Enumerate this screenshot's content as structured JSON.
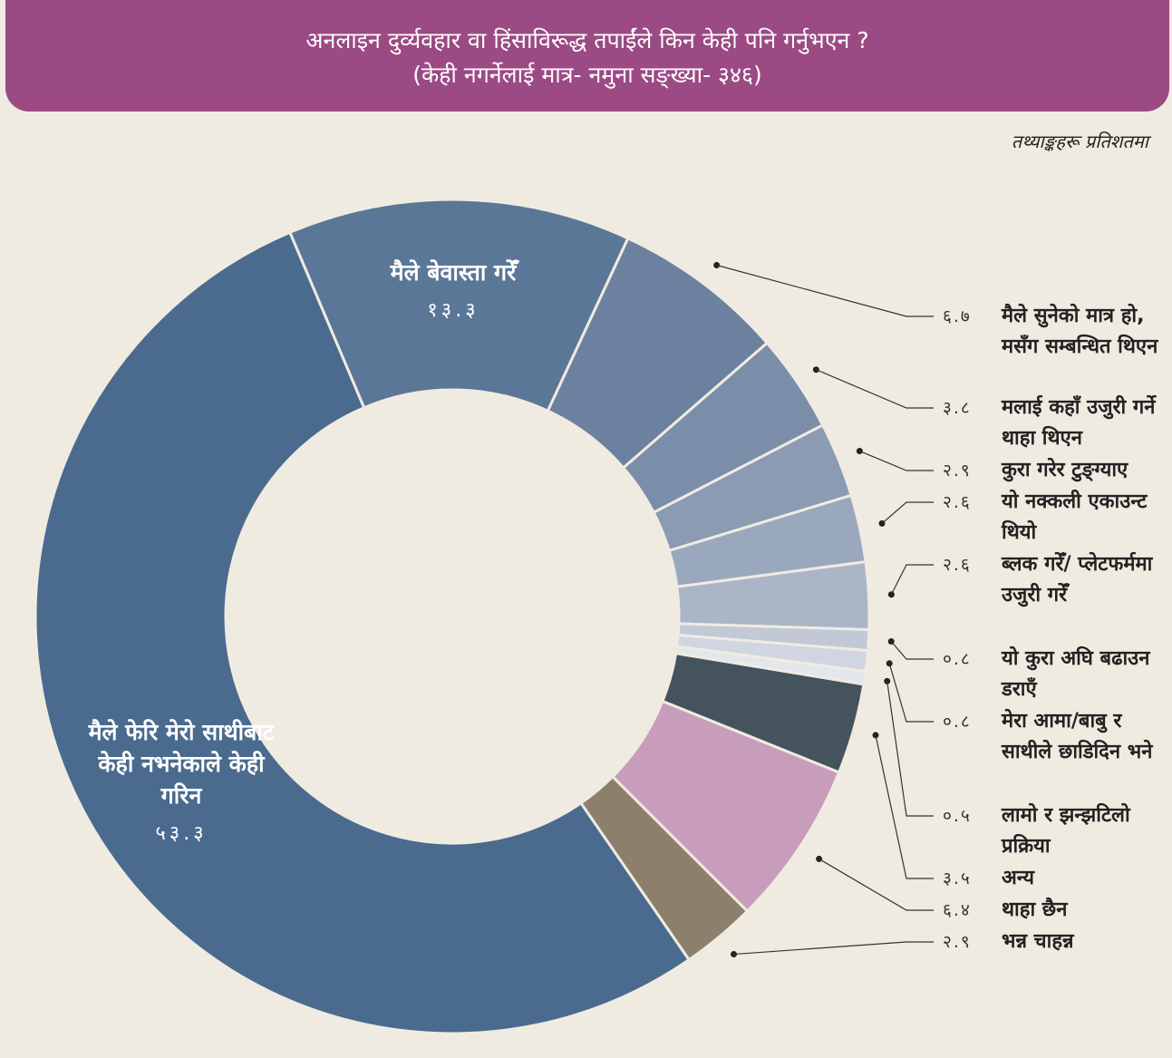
{
  "chart_data": {
    "type": "donut",
    "title": "अनलाइन दुर्व्यवहार वा हिंसाविरूद्ध तपाईंले किन केही पनि गर्नुभएन ?",
    "subtitle": "(केही नगर्नेलाई मात्र- नमुना सङ्ख्या- ३४६)",
    "note": "तथ्याङ्कहरू प्रतिशतमा",
    "categories": [
      "मैले फेरि मेरो साथीबाट केही नभनेकाले केही गरिन",
      "मैले बेवास्ता गरेँ",
      "मैले सुनेको मात्र हो, मसँग सम्बन्धित थिएन",
      "मलाई कहाँ उजुरी गर्ने थाहा थिएन",
      "कुरा गरेर टुङ्ग्याए",
      "यो नक्कली एकाउन्ट थियो",
      "ब्लक गरेँ/ प्लेटफर्ममा उजुरी गरेँ",
      "यो कुरा अघि बढाउन डराएँ",
      "मेरा आमा/बाबु र साथीले छाडिदिन भने",
      "लामो र झन्झटिलो प्रक्रिया",
      "अन्य",
      "थाहा छैन",
      "भन्न चाहन्न"
    ],
    "values": [
      53.3,
      13.3,
      6.7,
      3.8,
      2.9,
      2.6,
      2.6,
      0.8,
      0.8,
      0.5,
      3.5,
      6.4,
      2.9
    ],
    "value_labels": [
      "५३.३",
      "१३.३",
      "६.७",
      "३.८",
      "२.९",
      "२.६",
      "२.६",
      "०.८",
      "०.८",
      "०.५",
      "३.५",
      "६.४",
      "२.९"
    ],
    "colors": [
      "#4a6b8e",
      "#5b7797",
      "#6c819f",
      "#7b8ea9",
      "#8a9bb3",
      "#9aa8be",
      "#abb5c8",
      "#c1c8d6",
      "#d0d5e1",
      "#e3e6ec",
      "#45535f",
      "#c89dbb",
      "#8c806c"
    ]
  }
}
